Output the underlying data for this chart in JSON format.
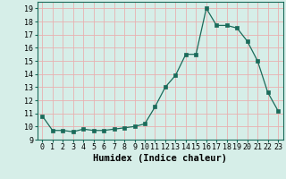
{
  "x": [
    0,
    1,
    2,
    3,
    4,
    5,
    6,
    7,
    8,
    9,
    10,
    11,
    12,
    13,
    14,
    15,
    16,
    17,
    18,
    19,
    20,
    21,
    22,
    23
  ],
  "y": [
    10.8,
    9.7,
    9.7,
    9.6,
    9.8,
    9.7,
    9.7,
    9.8,
    9.9,
    10.0,
    10.2,
    11.5,
    13.0,
    13.9,
    15.5,
    15.5,
    19.0,
    17.7,
    17.7,
    17.5,
    16.5,
    15.0,
    12.6,
    11.2
  ],
  "line_color": "#1a6b5a",
  "marker": "s",
  "marker_size": 2.5,
  "bg_color": "#d6eee8",
  "grid_color": "#e8b0b0",
  "xlabel": "Humidex (Indice chaleur)",
  "xlim": [
    -0.5,
    23.5
  ],
  "ylim": [
    9.0,
    19.5
  ],
  "yticks": [
    9,
    10,
    11,
    12,
    13,
    14,
    15,
    16,
    17,
    18,
    19
  ],
  "xticks": [
    0,
    1,
    2,
    3,
    4,
    5,
    6,
    7,
    8,
    9,
    10,
    11,
    12,
    13,
    14,
    15,
    16,
    17,
    18,
    19,
    20,
    21,
    22,
    23
  ],
  "tick_fontsize": 6,
  "label_fontsize": 7.5
}
